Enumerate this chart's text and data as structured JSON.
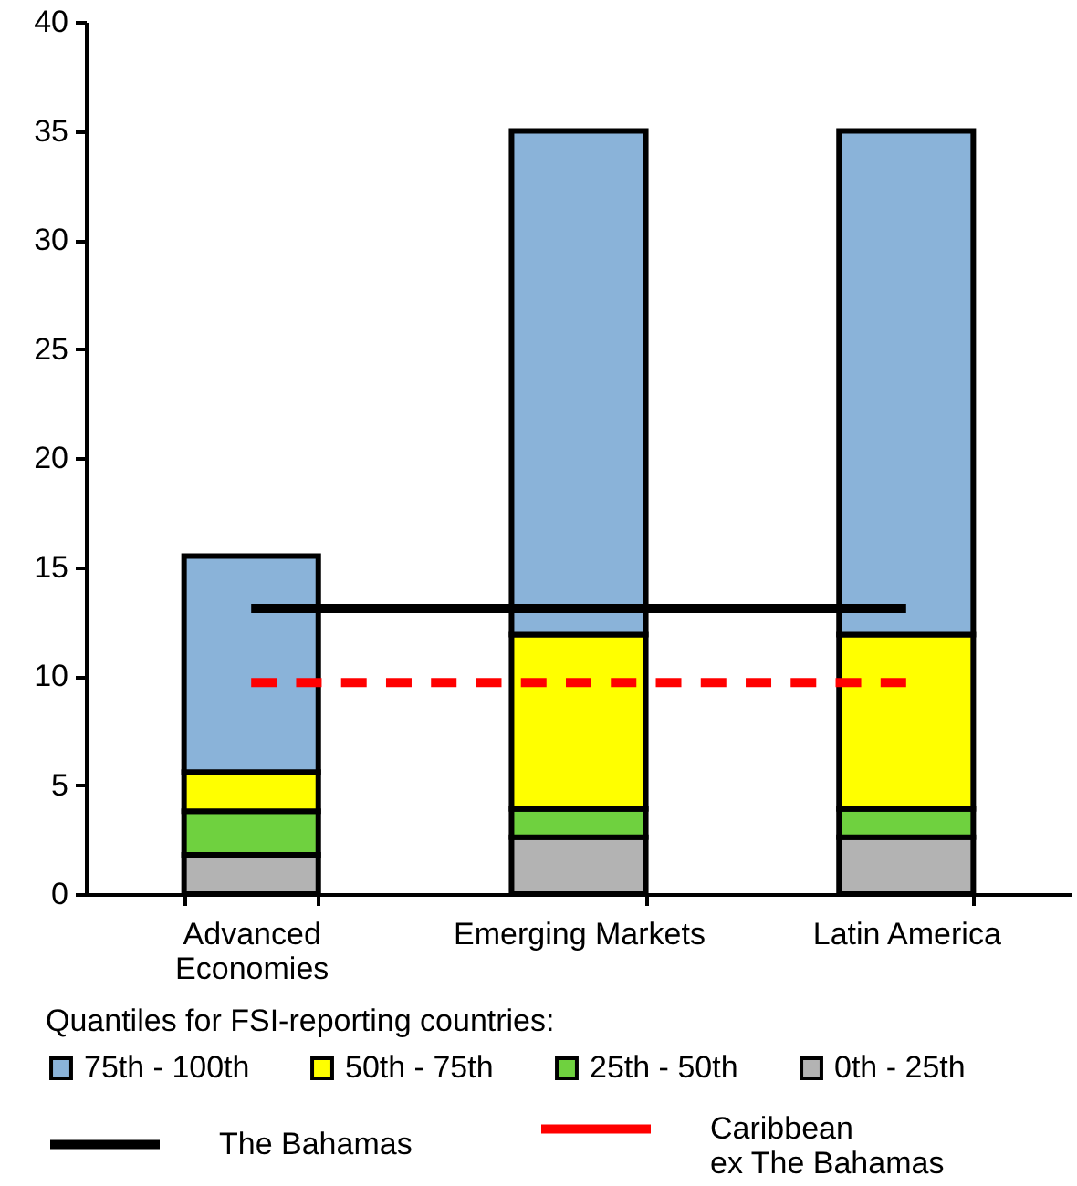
{
  "chart_data": {
    "type": "bar",
    "stacked": true,
    "categories": [
      "Advanced Economies",
      "Emerging Markets",
      "Latin America"
    ],
    "series": [
      {
        "name": "0th - 25th",
        "color": "#b3b3b3",
        "values": [
          1.8,
          2.6,
          2.6
        ]
      },
      {
        "name": "25th - 50th",
        "color": "#6fd13f",
        "values": [
          2.0,
          1.3,
          1.3
        ]
      },
      {
        "name": "50th - 75th",
        "color": "#ffff00",
        "values": [
          1.8,
          8.0,
          8.0
        ]
      },
      {
        "name": "75th - 100th",
        "color": "#8ab3d9",
        "values": [
          9.9,
          23.1,
          23.1
        ]
      },
      {
        "name": "The Bahamas",
        "type": "line",
        "color": "#000000",
        "line_style": "solid",
        "values": [
          13.1,
          13.1,
          13.1
        ]
      },
      {
        "name": "Caribbean ex The Bahamas",
        "type": "line",
        "color": "#ff0000",
        "line_style": "dashed",
        "values": [
          9.7,
          9.7,
          9.7
        ]
      }
    ],
    "legend_title": "Quantiles for FSI-reporting countries:",
    "ylim": [
      0,
      40
    ],
    "yticks": [
      0,
      5,
      10,
      15,
      20,
      25,
      30,
      35,
      40
    ],
    "grid": false,
    "legend": "bottom"
  }
}
